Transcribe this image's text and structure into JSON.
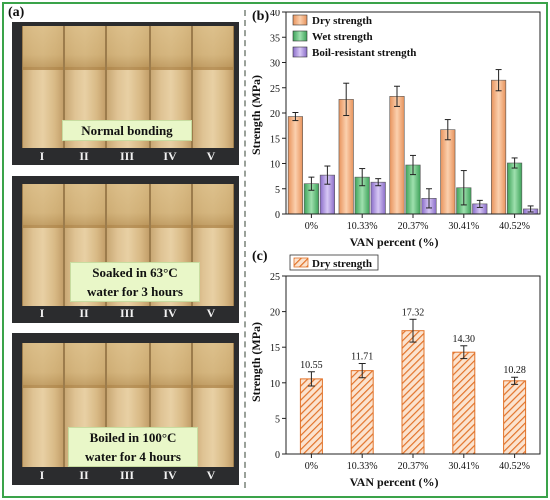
{
  "panel_labels": {
    "a": "(a)",
    "b": "(b)",
    "c": "(c)"
  },
  "photos": [
    {
      "caption": "Normal bonding",
      "caption_lines": [
        "Normal bonding"
      ],
      "roman": [
        "I",
        "II",
        "III",
        "IV",
        "V"
      ]
    },
    {
      "caption": "Soaked in 63°C water for 3 hours",
      "caption_lines": [
        "Soaked in  63°C",
        "water for 3 hours"
      ],
      "roman": [
        "I",
        "II",
        "III",
        "IV",
        "V"
      ]
    },
    {
      "caption": "Boiled in 100°C water for 4 hours",
      "caption_lines": [
        "Boiled in 100°C",
        "water for 4 hours"
      ],
      "roman": [
        "I",
        "II",
        "III",
        "IV",
        "V"
      ]
    }
  ],
  "colors": {
    "frame": "#3aa34a",
    "dry": "#f4b183",
    "wet": "#66c27b",
    "boil": "#b29ae0",
    "hatch": "#e2732a"
  },
  "chart_data": [
    {
      "id": "b",
      "type": "bar",
      "xlabel": "VAN percent (%)",
      "ylabel": "Strength (MPa)",
      "ylim": [
        0,
        40
      ],
      "yticks": [
        0,
        5,
        10,
        15,
        20,
        25,
        30,
        35,
        40
      ],
      "categories": [
        "0%",
        "10.33%",
        "20.37%",
        "30.41%",
        "40.52%"
      ],
      "legend_position": "top-left",
      "series": [
        {
          "name": "Dry strength",
          "values": [
            19.3,
            22.7,
            23.3,
            16.7,
            26.5
          ],
          "errors": [
            0.8,
            3.2,
            2.0,
            2.0,
            2.1
          ]
        },
        {
          "name": "Wet strength",
          "values": [
            6.0,
            7.3,
            9.7,
            5.2,
            10.1
          ],
          "errors": [
            1.3,
            1.7,
            1.9,
            3.4,
            1.0
          ]
        },
        {
          "name": "Boil-resistant strength",
          "values": [
            7.7,
            6.3,
            3.1,
            2.0,
            1.0
          ],
          "errors": [
            1.8,
            0.7,
            1.9,
            0.7,
            0.6
          ]
        }
      ]
    },
    {
      "id": "c",
      "type": "bar",
      "xlabel": "VAN percent (%)",
      "ylabel": "Strength (MPa)",
      "ylim": [
        0,
        25
      ],
      "yticks": [
        0,
        5,
        10,
        15,
        20,
        25
      ],
      "categories": [
        "0%",
        "10.33%",
        "20.37%",
        "30.41%",
        "40.52%"
      ],
      "legend_position": "top-left",
      "series": [
        {
          "name": "Dry strength",
          "values": [
            10.55,
            11.71,
            17.32,
            14.3,
            10.28
          ],
          "errors": [
            1.0,
            1.0,
            1.6,
            0.9,
            0.5
          ]
        }
      ],
      "data_labels": [
        "10.55",
        "11.71",
        "17.32",
        "14.30",
        "10.28"
      ]
    }
  ]
}
